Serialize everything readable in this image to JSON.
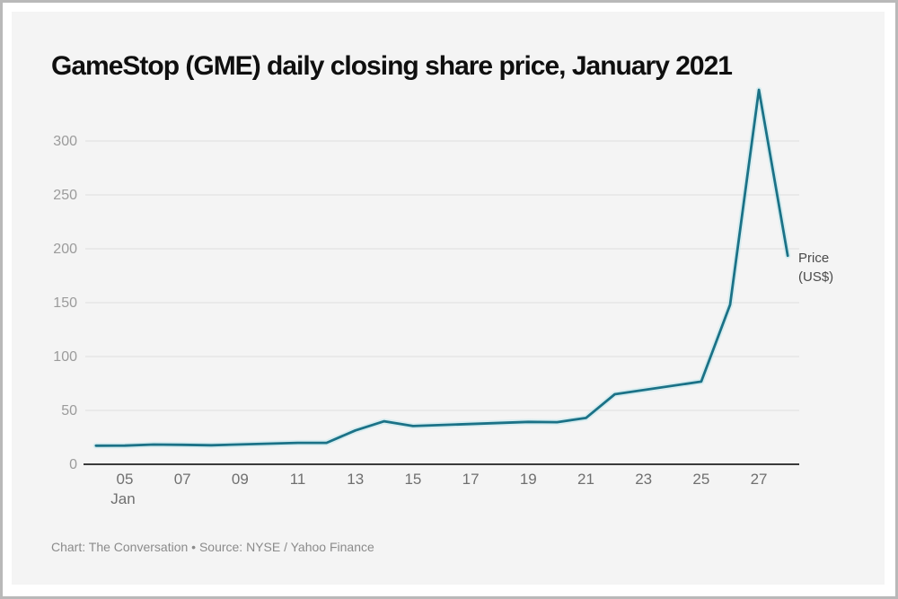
{
  "chart_data": {
    "type": "line",
    "title": "GameStop (GME) daily closing share price, January 2021",
    "caption": "Chart: The Conversation • Source: NYSE / Yahoo Finance",
    "series_label_lines": [
      "Price",
      "(US$)"
    ],
    "series": [
      {
        "name": "Price (US$)",
        "x_days": [
          4,
          5,
          6,
          7,
          8,
          11,
          12,
          13,
          14,
          15,
          19,
          20,
          21,
          22,
          25,
          26,
          27,
          28
        ],
        "values": [
          17.25,
          17.37,
          18.36,
          18.08,
          17.69,
          19.94,
          19.95,
          31.4,
          39.91,
          35.5,
          39.36,
          39.12,
          43.03,
          65.01,
          76.79,
          147.98,
          347.51,
          193.6
        ]
      }
    ],
    "x_month_label": "Jan",
    "x_tick_labels": [
      "05",
      "07",
      "09",
      "11",
      "13",
      "15",
      "17",
      "19",
      "21",
      "23",
      "25",
      "27"
    ],
    "x_tick_days": [
      5,
      7,
      9,
      11,
      13,
      15,
      17,
      19,
      21,
      23,
      25,
      27
    ],
    "y_tick_values": [
      0,
      50,
      100,
      150,
      200,
      250,
      300
    ],
    "xlim": [
      3.63,
      28.4
    ],
    "ylim": [
      0,
      351.7
    ],
    "grid": "horizontal-only",
    "legend_position": "right-of-line-end",
    "line_color": "#1b7287",
    "line_halo_color": "#b5e4ea",
    "axis_color": "#3b3b3b",
    "grid_color": "#dedede",
    "y_tick_color": "#9b9b9b",
    "x_tick_color": "#6f6f6f"
  }
}
